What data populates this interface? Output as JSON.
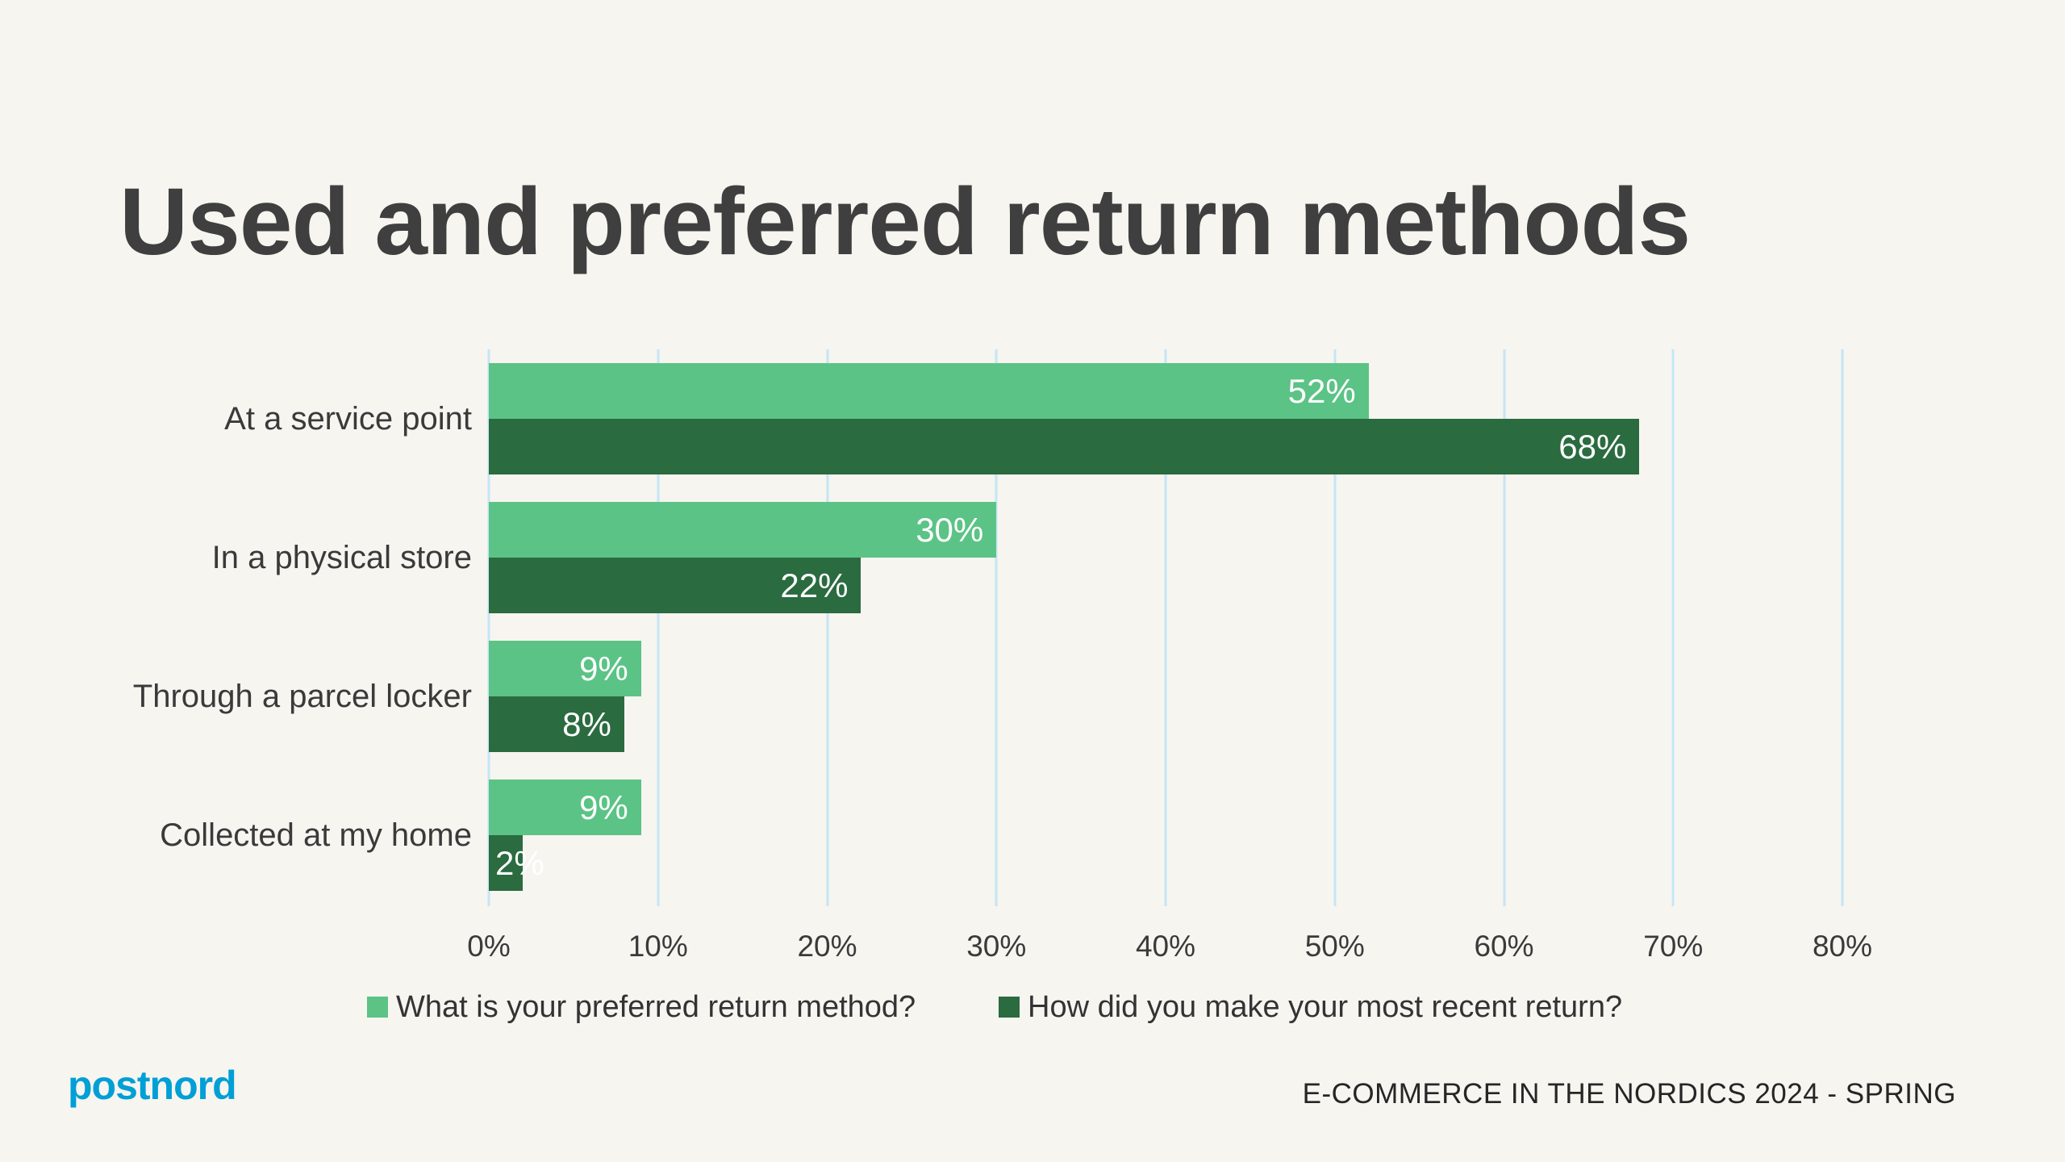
{
  "title": "Used and preferred return methods",
  "chart_data": {
    "type": "bar",
    "orientation": "horizontal",
    "title": "Used and preferred return methods",
    "categories": [
      "At a service point",
      "In a physical store",
      "Through a parcel locker",
      "Collected at my home"
    ],
    "series": [
      {
        "name": "What is your preferred return method?",
        "color": "#5bc385",
        "values": [
          52,
          30,
          9,
          9
        ]
      },
      {
        "name": "How did you make your most recent return?",
        "color": "#2a6b40",
        "values": [
          68,
          22,
          8,
          2
        ]
      }
    ],
    "value_label_format": "{v}%",
    "value_label_color": "#ffffff",
    "xlabel": "",
    "ylabel": "",
    "x_axis": {
      "min": 0,
      "max": 80,
      "tick_step": 10,
      "ticks": [
        "0%",
        "10%",
        "20%",
        "30%",
        "40%",
        "50%",
        "60%",
        "70%",
        "80%"
      ]
    },
    "grid": "vertical",
    "gridline_color": "#c5e5f6",
    "legend_position": "bottom"
  },
  "footer": {
    "logo_text": "postnord",
    "logo_color": "#009fd6",
    "source_label": "E-COMMERCE IN THE NORDICS 2024 - SPRING"
  },
  "background_color": "#f6f5f0"
}
